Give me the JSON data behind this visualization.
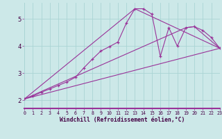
{
  "background_color": "#cce8e8",
  "line_color": "#993399",
  "grid_color": "#aad4d4",
  "xlabel": "Windchill (Refroidissement éolien,°C)",
  "xlim": [
    0,
    23
  ],
  "ylim": [
    1.7,
    5.6
  ],
  "yticks": [
    2,
    3,
    4,
    5
  ],
  "xticks": [
    0,
    1,
    2,
    3,
    4,
    5,
    6,
    7,
    8,
    9,
    10,
    11,
    12,
    13,
    14,
    15,
    16,
    17,
    18,
    19,
    20,
    21,
    22,
    23
  ],
  "series": [
    [
      0,
      2.05
    ],
    [
      1,
      2.15
    ],
    [
      2,
      2.3
    ],
    [
      3,
      2.42
    ],
    [
      4,
      2.55
    ],
    [
      5,
      2.68
    ],
    [
      6,
      2.85
    ],
    [
      7,
      3.2
    ],
    [
      8,
      3.52
    ],
    [
      9,
      3.82
    ],
    [
      10,
      3.98
    ],
    [
      11,
      4.15
    ],
    [
      12,
      4.85
    ],
    [
      13,
      5.38
    ],
    [
      14,
      5.38
    ],
    [
      15,
      5.18
    ],
    [
      16,
      3.62
    ],
    [
      17,
      4.68
    ],
    [
      18,
      4.0
    ],
    [
      19,
      4.68
    ],
    [
      20,
      4.72
    ],
    [
      21,
      4.58
    ],
    [
      22,
      4.32
    ],
    [
      23,
      3.92
    ]
  ],
  "line_straight": [
    [
      0,
      2.05
    ],
    [
      23,
      3.92
    ]
  ],
  "line_triangle": [
    [
      0,
      2.05
    ],
    [
      13,
      5.38
    ],
    [
      23,
      3.92
    ]
  ],
  "line_upper": [
    [
      0,
      2.05
    ],
    [
      19,
      4.68
    ],
    [
      20,
      4.72
    ],
    [
      23,
      3.92
    ]
  ],
  "marker": "+"
}
